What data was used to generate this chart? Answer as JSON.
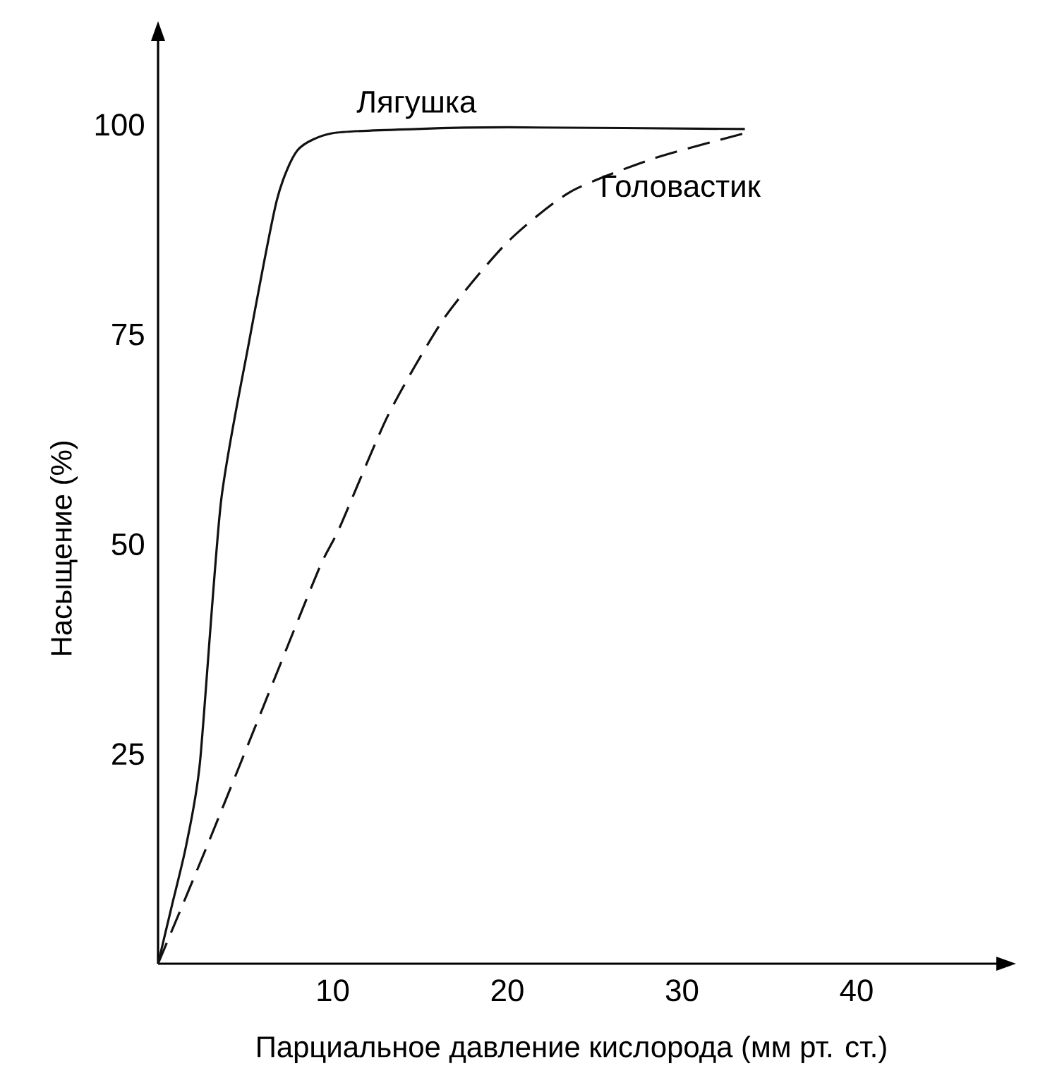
{
  "chart_data": {
    "type": "line",
    "xlabel": "Парциальное давление кислорода (мм рт. ст.)",
    "ylabel": "Насыщение (%)",
    "xlim": [
      0,
      48
    ],
    "ylim": [
      0,
      110
    ],
    "xticks": [
      10,
      20,
      30,
      40
    ],
    "yticks": [
      25,
      50,
      75,
      100
    ],
    "grid": false,
    "legend": false,
    "marker": "none",
    "series": [
      {
        "name": "Лягушка",
        "color": "#111111",
        "line_style": "solid",
        "x": [
          0,
          0.8,
          1.6,
          2.4,
          3.6,
          5.2,
          6.8,
          8,
          10,
          14.8,
          20,
          33.6
        ],
        "values": [
          0,
          7,
          14,
          24,
          55,
          74,
          91,
          97,
          99,
          99.5,
          99.7,
          99.5
        ]
      },
      {
        "name": "Головастик",
        "color": "#111111",
        "line_style": "dashed",
        "x": [
          0,
          2.8,
          6,
          9.2,
          10.4,
          13.2,
          16.4,
          20,
          23.6,
          28.4,
          33.6
        ],
        "values": [
          0,
          14,
          30.5,
          47,
          52,
          65.5,
          77,
          86,
          92,
          96,
          99
        ]
      }
    ]
  }
}
